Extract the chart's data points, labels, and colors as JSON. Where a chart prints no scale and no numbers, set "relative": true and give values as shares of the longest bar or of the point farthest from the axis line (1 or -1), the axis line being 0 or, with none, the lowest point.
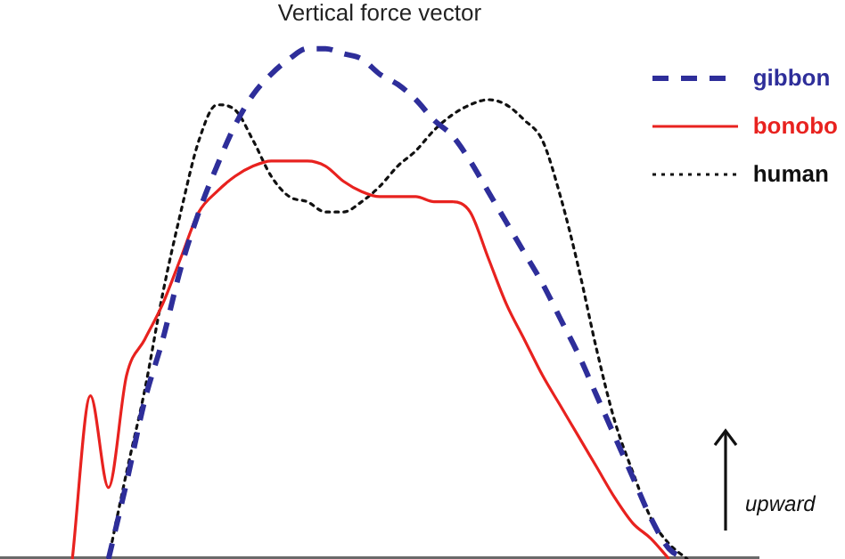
{
  "chart_data": {
    "type": "line",
    "title": "Vertical force vector",
    "relative": true,
    "legend": "top right",
    "grid": false,
    "marker": "none",
    "categories": [
      null,
      null,
      null,
      null,
      null,
      null,
      null,
      null,
      null,
      null,
      null,
      null,
      null,
      null,
      null,
      null,
      null,
      null,
      null,
      null,
      null,
      null,
      null,
      null,
      null,
      null,
      null,
      null,
      null,
      null,
      null,
      null,
      null,
      null,
      null,
      null,
      null,
      null,
      null,
      null,
      null,
      null,
      null
    ],
    "series": [
      {
        "name": "gibbon",
        "color": "#2e2e9a",
        "line_style": "dashed",
        "values": [
          null,
          null,
          null,
          null,
          null,
          null,
          0,
          0.15,
          0.31,
          0.43,
          0.57,
          0.68,
          0.77,
          0.85,
          0.91,
          0.95,
          0.98,
          1,
          1,
          0.99,
          0.98,
          0.95,
          0.93,
          0.9,
          0.86,
          0.83,
          0.78,
          0.72,
          0.66,
          0.6,
          0.54,
          0.47,
          0.4,
          0.32,
          0.24,
          0.16,
          0.08,
          0.02,
          0,
          null,
          null,
          null,
          null
        ]
      },
      {
        "name": "bonobo",
        "color": "#e8221f",
        "line_style": "solid",
        "values": [
          null,
          null,
          null,
          null,
          0,
          0.32,
          0.14,
          0.36,
          0.43,
          0.5,
          0.59,
          0.68,
          0.72,
          0.75,
          0.77,
          0.78,
          0.78,
          0.78,
          0.77,
          0.74,
          0.72,
          0.71,
          0.71,
          0.71,
          0.7,
          0.7,
          0.68,
          0.59,
          0.5,
          0.43,
          0.36,
          0.3,
          0.24,
          0.18,
          0.12,
          0.07,
          0.04,
          0,
          null,
          null,
          null,
          null,
          null
        ]
      },
      {
        "name": "human",
        "color": "#111111",
        "line_style": "dotted",
        "values": [
          null,
          null,
          null,
          null,
          null,
          null,
          0,
          0.17,
          0.33,
          0.52,
          0.68,
          0.82,
          0.89,
          0.88,
          0.82,
          0.75,
          0.71,
          0.7,
          0.68,
          0.68,
          0.7,
          0.73,
          0.77,
          0.8,
          0.84,
          0.87,
          0.89,
          0.9,
          0.89,
          0.86,
          0.82,
          0.71,
          0.57,
          0.41,
          0.27,
          0.17,
          0.08,
          0.03,
          0,
          null,
          null,
          null,
          null
        ]
      }
    ],
    "annotations": [
      "upward"
    ]
  }
}
